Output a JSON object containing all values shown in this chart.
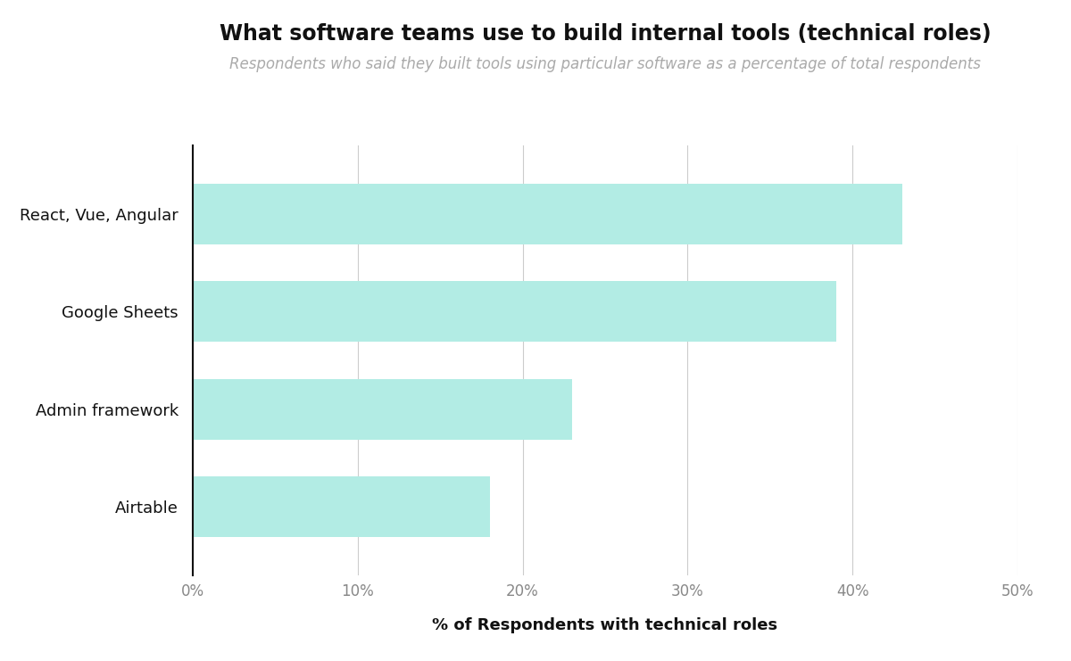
{
  "title": "What software teams use to build internal tools (technical roles)",
  "subtitle": "Respondents who said they built tools using particular software as a percentage of total respondents",
  "xlabel": "% of Respondents with technical roles",
  "categories": [
    "React, Vue, Angular",
    "Google Sheets",
    "Admin framework",
    "Airtable"
  ],
  "values": [
    43,
    39,
    23,
    18
  ],
  "bar_color": "#b2ece4",
  "xlim": [
    0,
    50
  ],
  "xticks": [
    0,
    10,
    20,
    30,
    40,
    50
  ],
  "xtick_labels": [
    "0%",
    "10%",
    "20%",
    "30%",
    "40%",
    "50%"
  ],
  "background_color": "#ffffff",
  "title_fontsize": 17,
  "subtitle_fontsize": 12,
  "xlabel_fontsize": 13,
  "tick_fontsize": 12,
  "category_fontsize": 13,
  "bar_height": 0.62,
  "title_color": "#111111",
  "subtitle_color": "#aaaaaa",
  "tick_color": "#888888",
  "xlabel_color": "#111111",
  "grid_color": "#cccccc",
  "spine_color": "#111111"
}
